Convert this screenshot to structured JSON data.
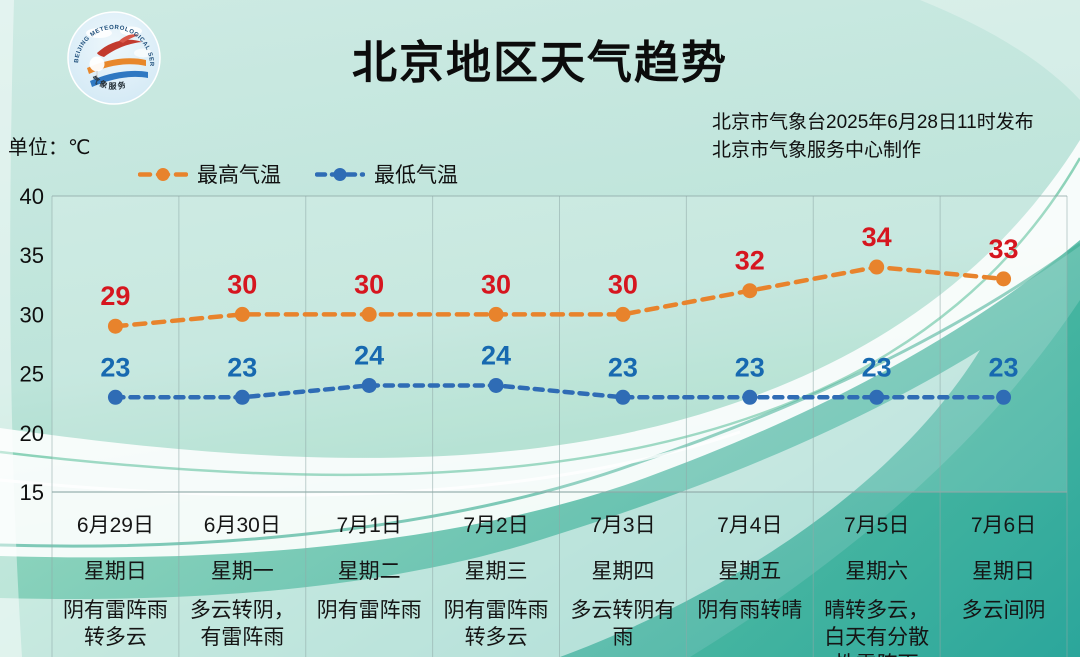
{
  "header": {
    "title": "北京地区天气趋势",
    "issue_line1": "北京市气象台2025年6月28日11时发布",
    "issue_line2": "北京市气象服务中心制作",
    "unit_label": "单位：℃",
    "logo": {
      "ring_text": "BEIJING METEOROLOGICAL SERVICE",
      "bottom_text": "气象服务"
    }
  },
  "chart_data": {
    "type": "line",
    "title": "北京地区天气趋势",
    "categories": [
      "6月29日",
      "6月30日",
      "7月1日",
      "7月2日",
      "7月3日",
      "7月4日",
      "7月5日",
      "7月6日"
    ],
    "weekdays": [
      "星期日",
      "星期一",
      "星期二",
      "星期三",
      "星期四",
      "星期五",
      "星期六",
      "星期日"
    ],
    "weather": [
      "阴有雷阵雨转多云",
      "多云转阴，有雷阵雨",
      "阴有雷阵雨",
      "阴有雷阵雨转多云",
      "多云转阴有雨",
      "阴有雨转晴",
      "晴转多云，白天有分散性雷阵雨",
      "多云间阴"
    ],
    "series": [
      {
        "key": "high",
        "name": "最高气温",
        "values": [
          29,
          30,
          30,
          30,
          30,
          32,
          34,
          33
        ],
        "line_color": "#e8832c",
        "label_color": "#d6161f",
        "dash": "11 8"
      },
      {
        "key": "low",
        "name": "最低气温",
        "values": [
          23,
          23,
          24,
          24,
          23,
          23,
          23,
          23
        ],
        "line_color": "#2f6cb5",
        "label_color": "#1769b0",
        "dash": "8 7"
      }
    ],
    "ylabel": "℃",
    "ylim": [
      15,
      40
    ],
    "yticks": [
      40,
      35,
      30,
      25,
      20,
      15
    ],
    "grid": "vertical-only",
    "legend_position": "top-left",
    "line_style": "dashed",
    "colors": {
      "grid": "#8fa9a7",
      "tick_text": "#0e0e0e",
      "bg_mint": "#c4e7e0",
      "bg_deep_teal": "#2ba69b"
    }
  }
}
